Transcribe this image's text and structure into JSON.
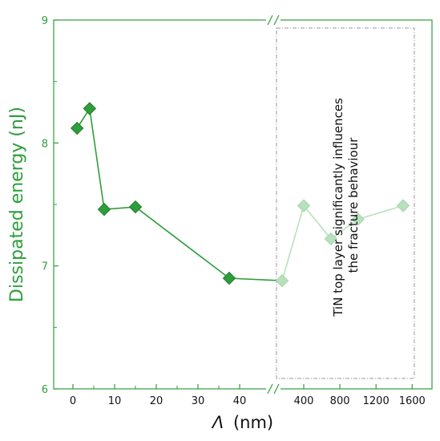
{
  "chart_data": {
    "type": "scatter",
    "xlabel_symbol": "Λ",
    "xlabel_unit": "(nm)",
    "ylabel": "Dissipated energy (nJ)",
    "ylim": [
      6,
      9
    ],
    "y_ticks": [
      "6",
      "7",
      "8",
      "9"
    ],
    "x_ticks_left": [
      "0",
      "10",
      "20",
      "30",
      "40"
    ],
    "x_ticks_right": [
      "400",
      "800",
      "1200",
      "1600"
    ],
    "x_break": true,
    "series": [
      {
        "segment": "left",
        "color": "#2e9e3a",
        "points": [
          {
            "x": 1,
            "y": 8.12
          },
          {
            "x": 4,
            "y": 8.28
          },
          {
            "x": 7.5,
            "y": 7.46
          },
          {
            "x": 15,
            "y": 7.48
          },
          {
            "x": 37.5,
            "y": 6.9
          },
          {
            "x": 200,
            "y": 6.88
          }
        ]
      },
      {
        "segment": "right",
        "color": "#b9e0bd",
        "points": [
          {
            "x": 200,
            "y": 6.88
          },
          {
            "x": 400,
            "y": 7.49
          },
          {
            "x": 700,
            "y": 7.22
          },
          {
            "x": 1000,
            "y": 7.38
          },
          {
            "x": 1500,
            "y": 7.49
          }
        ]
      }
    ],
    "annotation_lines": [
      "TiN top layer significantly influences",
      "the fracture behaviour"
    ],
    "colors": {
      "axis": "#2e9e3a",
      "ylabel": "#2e9e3a",
      "xlabel": "#111111"
    }
  }
}
